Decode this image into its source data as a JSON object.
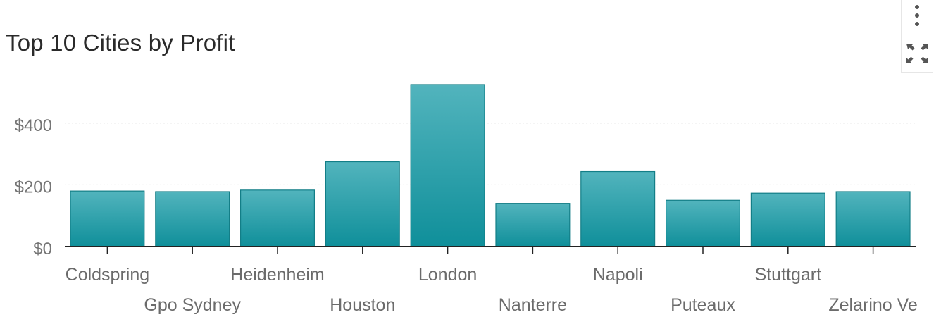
{
  "title": "Top 10 Cities by Profit",
  "colors": {
    "bar_top": "#52b4bd",
    "bar_bottom": "#0f8f9a",
    "bar_stroke": "#137e87",
    "axis": "#222222",
    "grid": "#d2d2d2",
    "tick_text": "#757575",
    "category_text": "#6b6b6b"
  },
  "toolbar": {
    "menu_icon": "kebab-vertical-icon",
    "expand_icon": "expand-arrows-icon"
  },
  "chart_data": {
    "type": "bar",
    "title": "Top 10 Cities by Profit",
    "xlabel": "",
    "ylabel": "",
    "categories": [
      "Coldspring",
      "Gpo Sydney",
      "Heidenheim",
      "Houston",
      "London",
      "Nanterre",
      "Napoli",
      "Puteaux",
      "Stuttgart",
      "Zelarino Ve"
    ],
    "values": [
      180,
      178,
      183,
      275,
      525,
      140,
      243,
      150,
      173,
      178
    ],
    "ylim": [
      0,
      525
    ],
    "yticks": [
      {
        "value": 0,
        "label": "$0"
      },
      {
        "value": 200,
        "label": "$200"
      },
      {
        "value": 400,
        "label": "$400"
      }
    ],
    "grid": true,
    "legend": "none"
  }
}
